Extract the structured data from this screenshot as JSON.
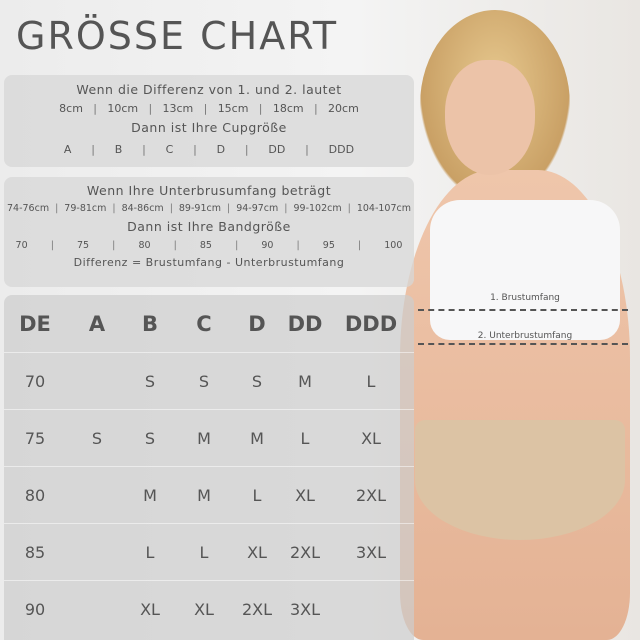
{
  "title": "GRÖSSE CHART",
  "cup_panel": {
    "heading": "Wenn die Differenz von 1. und 2. lautet",
    "differences": [
      "8cm",
      "10cm",
      "13cm",
      "15cm",
      "18cm",
      "20cm"
    ],
    "subheading": "Dann ist Ihre Cupgröße",
    "cups": [
      "A",
      "B",
      "C",
      "D",
      "DD",
      "DDD"
    ]
  },
  "band_panel": {
    "heading": "Wenn Ihre Unterbrusumfang beträgt",
    "ranges": [
      "74-76cm",
      "79-81cm",
      "84-86cm",
      "89-91cm",
      "94-97cm",
      "99-102cm",
      "104-107cm"
    ],
    "subheading": "Dann ist Ihre Bandgröße",
    "bands": [
      "70",
      "75",
      "80",
      "85",
      "90",
      "95",
      "100"
    ],
    "formula": "Differenz = Brustumfang - Unterbrustumfang"
  },
  "size_table": {
    "headers": [
      "DE",
      "A",
      "B",
      "C",
      "D",
      "DD",
      "DDD"
    ],
    "rows": [
      [
        "70",
        "",
        "S",
        "S",
        "S",
        "M",
        "L"
      ],
      [
        "75",
        "S",
        "S",
        "M",
        "M",
        "L",
        "XL"
      ],
      [
        "80",
        "",
        "M",
        "M",
        "L",
        "XL",
        "2XL"
      ],
      [
        "85",
        "",
        "L",
        "L",
        "XL",
        "2XL",
        "3XL"
      ],
      [
        "90",
        "",
        "XL",
        "XL",
        "2XL",
        "3XL",
        ""
      ]
    ]
  },
  "measurements": {
    "bust": "1. Brustumfang",
    "underbust": "2. Unterbrustumfang"
  }
}
